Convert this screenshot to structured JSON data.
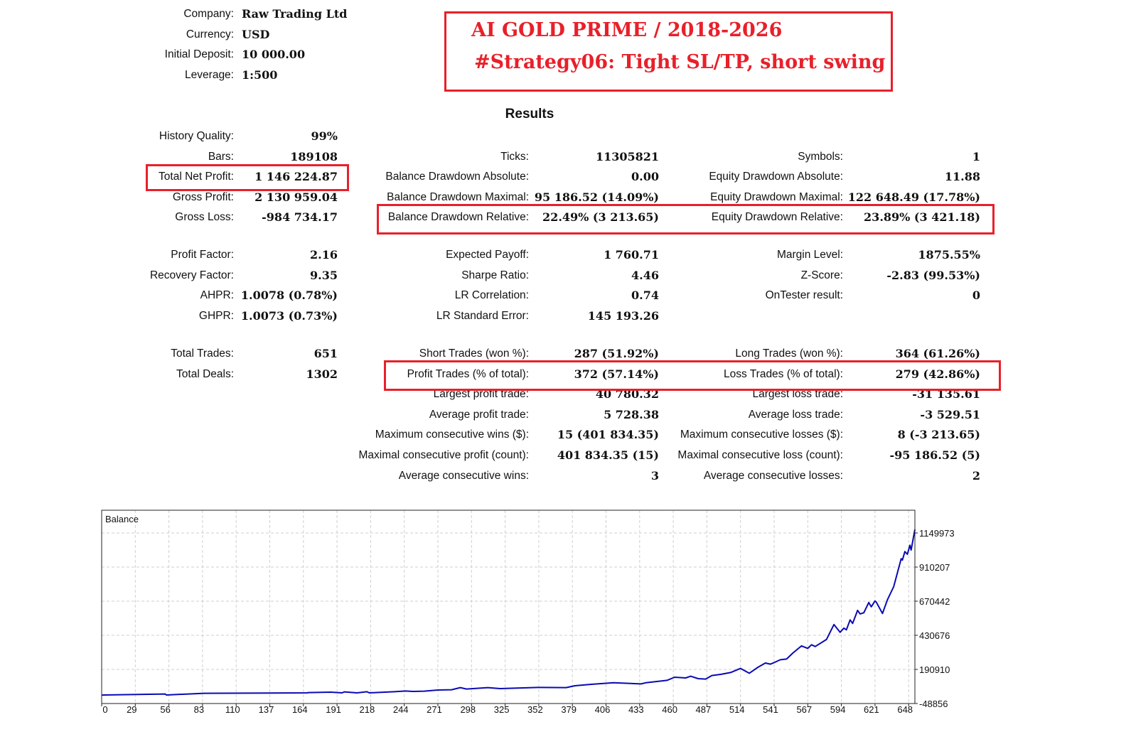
{
  "header": [
    {
      "label": "Company:",
      "value": "Raw Trading Ltd"
    },
    {
      "label": "Currency:",
      "value": "USD"
    },
    {
      "label": "Initial Deposit:",
      "value": "10 000.00"
    },
    {
      "label": "Leverage:",
      "value": "1:500"
    }
  ],
  "title_box": {
    "line1": "AI GOLD PRIME / 2018-2026",
    "line2": "#Strategy06: Tight SL/TP, short swing",
    "color": "#e8202a"
  },
  "results_title": "Results",
  "sections": [
    [
      [
        {
          "label": "History Quality:",
          "value": "99%"
        },
        null,
        null
      ],
      [
        {
          "label": "Bars:",
          "value": "189108"
        },
        {
          "label": "Ticks:",
          "value": "11305821"
        },
        {
          "label": "Symbols:",
          "value": "1"
        }
      ],
      [
        {
          "label": "Total Net Profit:",
          "value": "1 146 224.87"
        },
        {
          "label": "Balance Drawdown Absolute:",
          "value": "0.00"
        },
        {
          "label": "Equity Drawdown Absolute:",
          "value": "11.88"
        }
      ],
      [
        {
          "label": "Gross Profit:",
          "value": "2 130 959.04"
        },
        {
          "label": "Balance Drawdown Maximal:",
          "value": "95 186.52 (14.09%)"
        },
        {
          "label": "Equity Drawdown Maximal:",
          "value": "122 648.49 (17.78%)"
        }
      ],
      [
        {
          "label": "Gross Loss:",
          "value": "-984 734.17"
        },
        {
          "label": "Balance Drawdown Relative:",
          "value": "22.49% (3 213.65)"
        },
        {
          "label": "Equity Drawdown Relative:",
          "value": "23.89% (3 421.18)"
        }
      ]
    ],
    [
      [
        {
          "label": "Profit Factor:",
          "value": "2.16"
        },
        {
          "label": "Expected Payoff:",
          "value": "1 760.71"
        },
        {
          "label": "Margin Level:",
          "value": "1875.55%"
        }
      ],
      [
        {
          "label": "Recovery Factor:",
          "value": "9.35"
        },
        {
          "label": "Sharpe Ratio:",
          "value": "4.46"
        },
        {
          "label": "Z-Score:",
          "value": "-2.83 (99.53%)"
        }
      ],
      [
        {
          "label": "AHPR:",
          "value": "1.0078 (0.78%)"
        },
        {
          "label": "LR Correlation:",
          "value": "0.74"
        },
        {
          "label": "OnTester result:",
          "value": "0"
        }
      ],
      [
        {
          "label": "GHPR:",
          "value": "1.0073 (0.73%)"
        },
        {
          "label": "LR Standard Error:",
          "value": "145 193.26"
        },
        null
      ]
    ],
    [
      [
        {
          "label": "Total Trades:",
          "value": "651"
        },
        {
          "label": "Short Trades (won %):",
          "value": "287 (51.92%)"
        },
        {
          "label": "Long Trades (won %):",
          "value": "364 (61.26%)"
        }
      ],
      [
        {
          "label": "Total Deals:",
          "value": "1302"
        },
        {
          "label": "Profit Trades (% of total):",
          "value": "372 (57.14%)"
        },
        {
          "label": "Loss Trades (% of total):",
          "value": "279 (42.86%)"
        }
      ],
      [
        null,
        {
          "label": "Largest profit trade:",
          "value": "40 780.32"
        },
        {
          "label": "Largest loss trade:",
          "value": "-31 135.61"
        }
      ],
      [
        null,
        {
          "label": "Average profit trade:",
          "value": "5 728.38"
        },
        {
          "label": "Average loss trade:",
          "value": "-3 529.51"
        }
      ],
      [
        null,
        {
          "label": "Maximum consecutive wins ($):",
          "value": "15 (401 834.35)"
        },
        {
          "label": "Maximum consecutive losses ($):",
          "value": "8 (-3 213.65)"
        }
      ],
      [
        null,
        {
          "label": "Maximal consecutive profit (count):",
          "value": "401 834.35 (15)"
        },
        {
          "label": "Maximal consecutive loss (count):",
          "value": "-95 186.52 (5)"
        }
      ],
      [
        null,
        {
          "label": "Average consecutive wins:",
          "value": "3"
        },
        {
          "label": "Average consecutive losses:",
          "value": "2"
        }
      ]
    ]
  ],
  "chart_data": {
    "type": "line",
    "title": "Balance",
    "line_color": "#0a0ab4",
    "grid": true,
    "x_ticks": [
      0,
      29,
      56,
      83,
      110,
      137,
      164,
      191,
      218,
      244,
      271,
      298,
      325,
      352,
      379,
      406,
      433,
      460,
      487,
      514,
      541,
      567,
      594,
      621,
      648
    ],
    "y_ticks": [
      1149973,
      910207,
      670442,
      430676,
      190910,
      -48856
    ],
    "series": [
      {
        "x": [
          0,
          2,
          51,
          52,
          82,
          165,
          166,
          184,
          193,
          195,
          205,
          213,
          215,
          235,
          244,
          250,
          259,
          270,
          281,
          288,
          293,
          310,
          320,
          350,
          373,
          380,
          393,
          411,
          433,
          437,
          454,
          460,
          469,
          473,
          479,
          485,
          490,
          497,
          505,
          513,
          520,
          527,
          533,
          537,
          540,
          545,
          550,
          555,
          562,
          567,
          570,
          573,
          582,
          588,
          593,
          596,
          598,
          601,
          603,
          607,
          609,
          612,
          616,
          618,
          621,
          622,
          627,
          631,
          636,
          642,
          643,
          645,
          647,
          649,
          650,
          653
        ],
        "y": [
          10000,
          11000,
          18000,
          11000,
          23000,
          26000,
          28000,
          31000,
          26000,
          33000,
          26000,
          34000,
          26000,
          34000,
          39000,
          36000,
          38000,
          46000,
          48000,
          63000,
          53000,
          63000,
          56000,
          64000,
          63000,
          76000,
          86000,
          97000,
          89000,
          97000,
          114000,
          136000,
          131000,
          143000,
          126000,
          123000,
          148000,
          156000,
          169000,
          198000,
          164000,
          206000,
          236000,
          228000,
          239000,
          259000,
          264000,
          306000,
          356000,
          339000,
          364000,
          352000,
          401000,
          506000,
          452000,
          481000,
          469000,
          539000,
          514000,
          606000,
          581000,
          589000,
          661000,
          631000,
          672000,
          664000,
          584000,
          681000,
          773000,
          969000,
          959000,
          1019000,
          1000000,
          1064000,
          1030000,
          1175000
        ]
      }
    ]
  }
}
